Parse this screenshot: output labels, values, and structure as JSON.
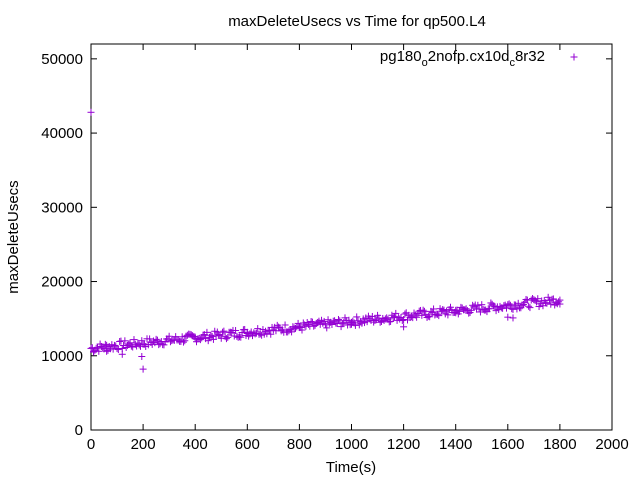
{
  "chart_data": {
    "type": "scatter",
    "title": "maxDeleteUsecs vs Time for qp500.L4",
    "xlabel": "Time(s)",
    "ylabel": "maxDeleteUsecs",
    "xlim": [
      0,
      2000
    ],
    "ylim": [
      0,
      52000
    ],
    "xticks": [
      0,
      200,
      400,
      600,
      800,
      1000,
      1200,
      1400,
      1600,
      1800,
      2000
    ],
    "yticks": [
      0,
      10000,
      20000,
      30000,
      40000,
      50000
    ],
    "grid": false,
    "legend_position": "top-right",
    "series": [
      {
        "name": "pg180_o2nofp.cx10d_c8r32",
        "name_parts": {
          "p1": "pg180",
          "s1": "o",
          "p2": "2nofp.cx10d",
          "s2": "c",
          "p3": "8r32"
        },
        "color": "#9400d3",
        "marker": "plus",
        "trend": {
          "x_start": 0,
          "y_start": 11000,
          "x_end": 1800,
          "y_end": 17500,
          "spread": 600,
          "step": 5
        },
        "points": [
          {
            "x": 0,
            "y": 42800
          },
          {
            "x": 10,
            "y": 10500
          },
          {
            "x": 60,
            "y": 10600
          },
          {
            "x": 120,
            "y": 10200
          },
          {
            "x": 195,
            "y": 9900
          },
          {
            "x": 200,
            "y": 8200
          },
          {
            "x": 400,
            "y": 12300
          },
          {
            "x": 600,
            "y": 13000
          },
          {
            "x": 800,
            "y": 13800
          },
          {
            "x": 1000,
            "y": 14500
          },
          {
            "x": 1200,
            "y": 13900
          },
          {
            "x": 1400,
            "y": 15800
          },
          {
            "x": 1600,
            "y": 15200
          },
          {
            "x": 1620,
            "y": 15100
          },
          {
            "x": 1800,
            "y": 17500
          }
        ]
      }
    ]
  }
}
